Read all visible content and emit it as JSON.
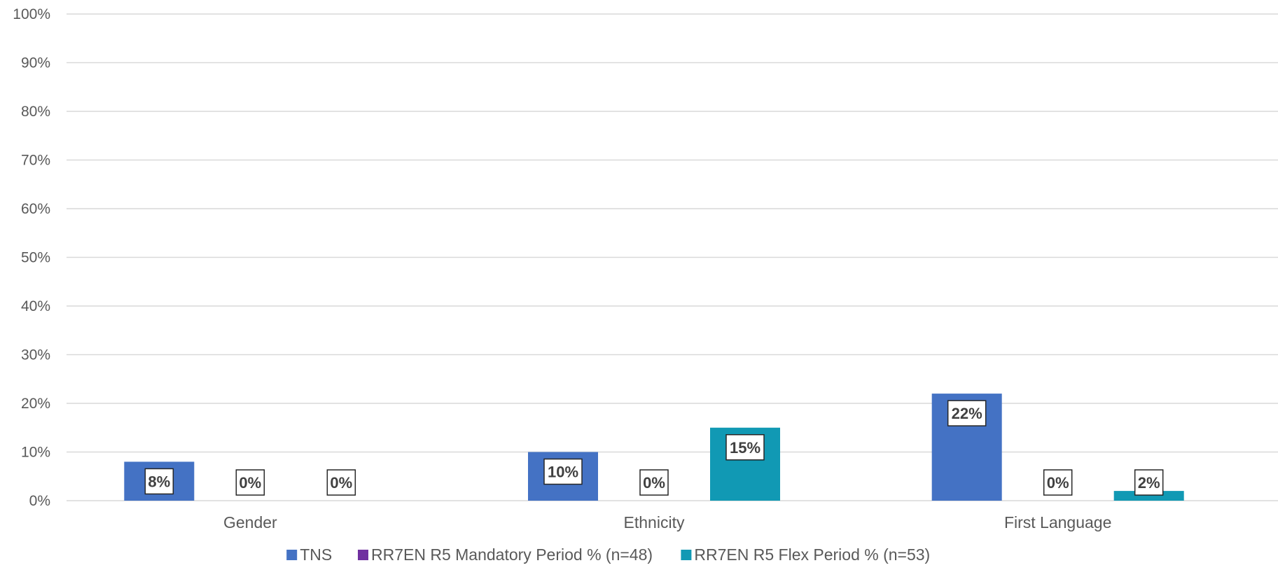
{
  "chart_data": {
    "type": "bar",
    "title": "",
    "xlabel": "",
    "ylabel": "",
    "categories": [
      "Gender",
      "Ethnicity",
      "First Language"
    ],
    "series": [
      {
        "name": "TNS",
        "values": [
          8,
          10,
          22
        ],
        "labels": [
          "8%",
          "10%",
          "22%"
        ],
        "color": "#4472C4"
      },
      {
        "name": "RR7EN R5 Mandatory Period % (n=48)",
        "values": [
          0,
          0,
          0
        ],
        "labels": [
          "0%",
          "0%",
          "0%"
        ],
        "color": "#7030A0"
      },
      {
        "name": "RR7EN R5 Flex Period % (n=53)",
        "values": [
          0,
          15,
          2
        ],
        "labels": [
          "0%",
          "15%",
          "2%"
        ],
        "color": "#1199B4"
      }
    ],
    "ylim": [
      0,
      100
    ],
    "yticks": [
      "0%",
      "10%",
      "20%",
      "30%",
      "40%",
      "50%",
      "60%",
      "70%",
      "80%",
      "90%",
      "100%"
    ],
    "grid": true,
    "legend": "bottom"
  }
}
